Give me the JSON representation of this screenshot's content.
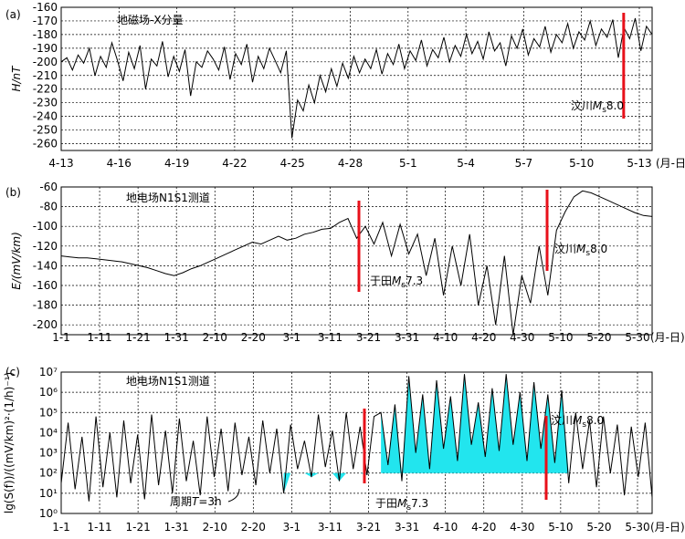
{
  "chart_data": [
    {
      "panel": "(a)",
      "type": "line",
      "annotation": "地磁场-X分量",
      "ylabel": "H/nT",
      "xunit": "(月-日)",
      "ylim": [
        -265,
        -160
      ],
      "yticks": [
        -160,
        -170,
        -180,
        -190,
        -200,
        -210,
        -220,
        -230,
        -240,
        -250,
        -260
      ],
      "xticks": [
        "4-13",
        "4-16",
        "4-19",
        "4-22",
        "4-25",
        "4-28",
        "5-1",
        "5-4",
        "5-7",
        "5-10",
        "5-13"
      ],
      "events": [
        {
          "label_prefix": "汶川",
          "label_M": "M",
          "label_sub": "s",
          "label_val": "8.0",
          "x": "5-12"
        }
      ],
      "series": [
        {
          "values": [
            -200,
            -197,
            -206,
            -195,
            -201,
            -190,
            -210,
            -196,
            -204,
            -186,
            -199,
            -214,
            -193,
            -205,
            -188,
            -220,
            -198,
            -203,
            -185,
            -211,
            -196,
            -207,
            -191,
            -225,
            -200,
            -204,
            -192,
            -198,
            -206,
            -189,
            -213,
            -194,
            -202,
            -187,
            -215,
            -196,
            -205,
            -190,
            -199,
            -208,
            -192,
            -256,
            -228,
            -236,
            -217,
            -230,
            -210,
            -222,
            -205,
            -218,
            -201,
            -212,
            -196,
            -208,
            -198,
            -205,
            -191,
            -209,
            -194,
            -202,
            -187,
            -205,
            -192,
            -199,
            -184,
            -203,
            -191,
            -197,
            -182,
            -200,
            -188,
            -196,
            -180,
            -194,
            -185,
            -198,
            -178,
            -192,
            -186,
            -203,
            -181,
            -190,
            -176,
            -195,
            -183,
            -189,
            -174,
            -193,
            -180,
            -186,
            -172,
            -190,
            -178,
            -184,
            -170,
            -188,
            -176,
            -182,
            -169,
            -197,
            -175,
            -183,
            -168,
            -192,
            -174,
            -180
          ]
        }
      ]
    },
    {
      "panel": "(b)",
      "type": "line",
      "annotation": "地电场N1S1测道",
      "ylabel": "E/(mV/km)",
      "xunit": "(月-日)",
      "ylim": [
        -210,
        -60
      ],
      "yticks": [
        -60,
        -80,
        -100,
        -120,
        -140,
        -160,
        -180,
        -200
      ],
      "xticks": [
        "1-1",
        "1-11",
        "1-21",
        "1-31",
        "2-10",
        "2-20",
        "3-1",
        "3-11",
        "3-21",
        "3-31",
        "4-10",
        "4-20",
        "4-30",
        "5-10",
        "5-20",
        "5-30"
      ],
      "events": [
        {
          "label_prefix": "于田",
          "label_M": "M",
          "label_sub": "s",
          "label_val": "7.3",
          "x": "3-21"
        },
        {
          "label_prefix": "汶川",
          "label_M": "M",
          "label_sub": "s",
          "label_val": "8.0",
          "x": "5-12"
        }
      ],
      "series": [
        {
          "values": [
            -130,
            -131,
            -132,
            -132,
            -133,
            -134,
            -135,
            -136,
            -138,
            -140,
            -142,
            -145,
            -148,
            -150,
            -147,
            -143,
            -140,
            -136,
            -132,
            -128,
            -124,
            -120,
            -116,
            -118,
            -114,
            -110,
            -114,
            -112,
            -108,
            -106,
            -103,
            -102,
            -96,
            -92,
            -112,
            -100,
            -118,
            -96,
            -130,
            -98,
            -128,
            -108,
            -150,
            -112,
            -170,
            -120,
            -160,
            -108,
            -180,
            -140,
            -200,
            -130,
            -210,
            -150,
            -178,
            -120,
            -170,
            -104,
            -85,
            -70,
            -64,
            -66,
            -70,
            -74,
            -78,
            -82,
            -86,
            -89,
            -90
          ]
        }
      ]
    },
    {
      "panel": "(c)",
      "type": "line",
      "annotation": "地电场N1S1测道",
      "ylabel": "lg(S(f))/((mV/km)²·(1/h)⁻¹)",
      "xunit": "(月-日)",
      "log_scale": true,
      "ylim_exp": [
        0,
        7
      ],
      "yticks": [
        "10⁰",
        "10¹",
        "10²",
        "10³",
        "10⁴",
        "10⁵",
        "10⁶",
        "10⁷"
      ],
      "xticks": [
        "1-1",
        "1-11",
        "1-21",
        "1-31",
        "2-10",
        "2-20",
        "3-1",
        "3-11",
        "3-21",
        "3-31",
        "4-10",
        "4-20",
        "4-30",
        "5-10",
        "5-20",
        "5-30"
      ],
      "period_label_prefix": "周期",
      "period_label_T": "T",
      "period_label_val": "=3h",
      "events": [
        {
          "label_prefix": "于田",
          "label_M": "M",
          "label_sub": "s",
          "label_val": "7.3",
          "x": "3-23"
        },
        {
          "label_prefix": "汶川",
          "label_M": "M",
          "label_sub": "s",
          "label_val": "8.0",
          "x": "5-12"
        }
      ],
      "highlight_color": "#22e5ee",
      "series": [
        {
          "values": [
            1.5,
            4.5,
            1.2,
            3.8,
            0.6,
            4.8,
            1.3,
            4.0,
            0.8,
            4.6,
            1.5,
            3.9,
            0.7,
            4.9,
            1.4,
            4.1,
            1.0,
            4.7,
            1.6,
            3.6,
            0.9,
            4.8,
            1.8,
            4.2,
            1.1,
            4.5,
            1.9,
            3.8,
            1.4,
            4.6,
            2.0,
            4.2,
            1.0,
            4.4,
            2.2,
            3.6,
            1.8,
            4.9,
            2.3,
            4.1,
            1.6,
            5.0,
            2.2,
            4.3,
            1.9,
            4.8,
            5.0,
            2.4,
            5.4,
            1.6,
            6.8,
            3.0,
            5.9,
            2.2,
            6.6,
            3.2,
            5.8,
            2.6,
            6.9,
            3.4,
            5.5,
            2.8,
            6.2,
            3.1,
            6.9,
            3.4,
            6.0,
            2.6,
            6.5,
            3.2,
            5.9,
            2.5,
            6.1,
            1.5,
            5.0,
            2.2,
            4.6,
            1.3,
            4.8,
            2.0,
            4.4,
            0.9,
            4.3,
            1.8,
            4.5,
            0.8
          ]
        }
      ]
    }
  ],
  "colors": {
    "event_line": "#e8101a",
    "line": "#000000",
    "highlight": "#22e5ee"
  }
}
